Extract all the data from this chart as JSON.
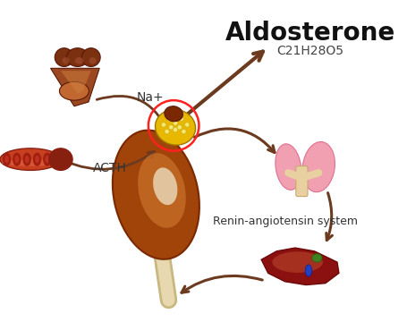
{
  "title": "Aldosterone",
  "subtitle": "C21H28O5",
  "label_na": "Na+",
  "label_acth": "ACTH",
  "label_renin": "Renin-angiotensin system",
  "bg_color": "#ffffff",
  "title_color": "#111111",
  "subtitle_color": "#444444",
  "label_color": "#333333",
  "arrow_color": "#6B3A1F",
  "kidney_dark": "#7B2800",
  "kidney_mid": "#A0440A",
  "kidney_light": "#C8722A",
  "kidney_highlight": "#D4956A",
  "kidney_white": "#E8D5B5",
  "adrenal_yellow": "#E8B800",
  "adrenal_dot": "#F5E060",
  "adrenal_brown": "#7B2800",
  "ureter_color": "#E8D8B0",
  "ureter_dark": "#C8B880",
  "blood_vessel_color": "#C84020",
  "blood_vessel_dark": "#882010",
  "rbc_color": "#A02010",
  "pituitary_brown": "#7B3010",
  "pituitary_dark": "#5A1808",
  "pituitary_fan": "#9B4820",
  "lung_pink": "#F0A0B0",
  "lung_edge": "#E07090",
  "trachea_color": "#E8D0A0",
  "trachea_dark": "#C8A870",
  "liver_dark": "#6B0808",
  "liver_mid": "#8B1010",
  "liver_light": "#A83020",
  "liver_hilite": "#C05030",
  "bile_green": "#408020",
  "bile_blue": "#2040C0",
  "circle_color": "#FF2020"
}
